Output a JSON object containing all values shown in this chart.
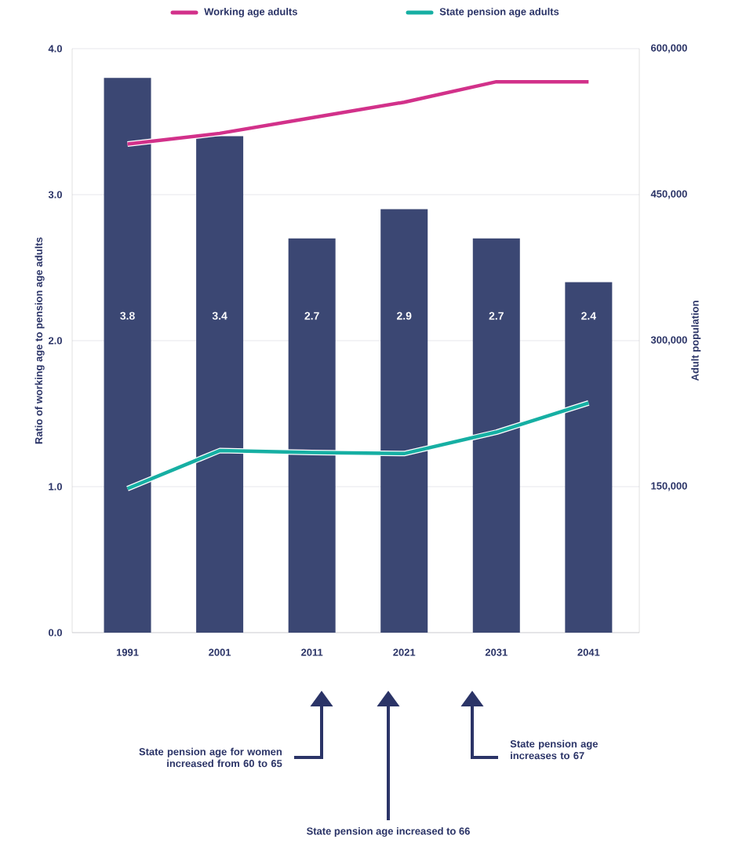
{
  "chart_data": {
    "type": "bar",
    "categories": [
      "1991",
      "2001",
      "2011",
      "2021",
      "2031",
      "2041"
    ],
    "series": [
      {
        "color": "#3b4773",
        "values": [
          3.8,
          3.4,
          2.7,
          2.9,
          2.7,
          2.4
        ],
        "value_labels": [
          "3.8",
          "3.4",
          "2.7",
          "2.9",
          "2.7",
          "2.4"
        ]
      },
      {
        "type": "line",
        "name": "Working age adults",
        "color": "#d2318a",
        "axis": "y2",
        "values": [
          502000,
          513000,
          529000,
          545000,
          566000,
          566000
        ]
      },
      {
        "type": "line",
        "name": "State pension age adults",
        "color": "#16afa3",
        "axis": "y2",
        "values": [
          148000,
          187000,
          185000,
          184000,
          206000,
          236000
        ]
      }
    ],
    "ylabel": "Ratio of working age to pension age adults",
    "y2label": "Adult population",
    "ylim": [
      0,
      4
    ],
    "yticks": [
      {
        "value": 0,
        "label": "0.0"
      },
      {
        "value": 1,
        "label": "1.0"
      },
      {
        "value": 2,
        "label": "2.0"
      },
      {
        "value": 3,
        "label": "3.0"
      },
      {
        "value": 4,
        "label": "4.0"
      }
    ],
    "y2lim": [
      0,
      600000
    ],
    "y2ticks": [
      {
        "value": 0,
        "label": null
      },
      {
        "value": 150000,
        "label": "150,000"
      },
      {
        "value": 300000,
        "label": "300,000"
      },
      {
        "value": 450000,
        "label": "450,000"
      },
      {
        "value": 600000,
        "label": "600,000"
      }
    ],
    "grid": "y",
    "legend": "top",
    "marker": "none",
    "annotations": [
      "State pension age for women increased from 60 to 65",
      "State pension age increased to 66",
      "State pension age increases to 67"
    ]
  }
}
